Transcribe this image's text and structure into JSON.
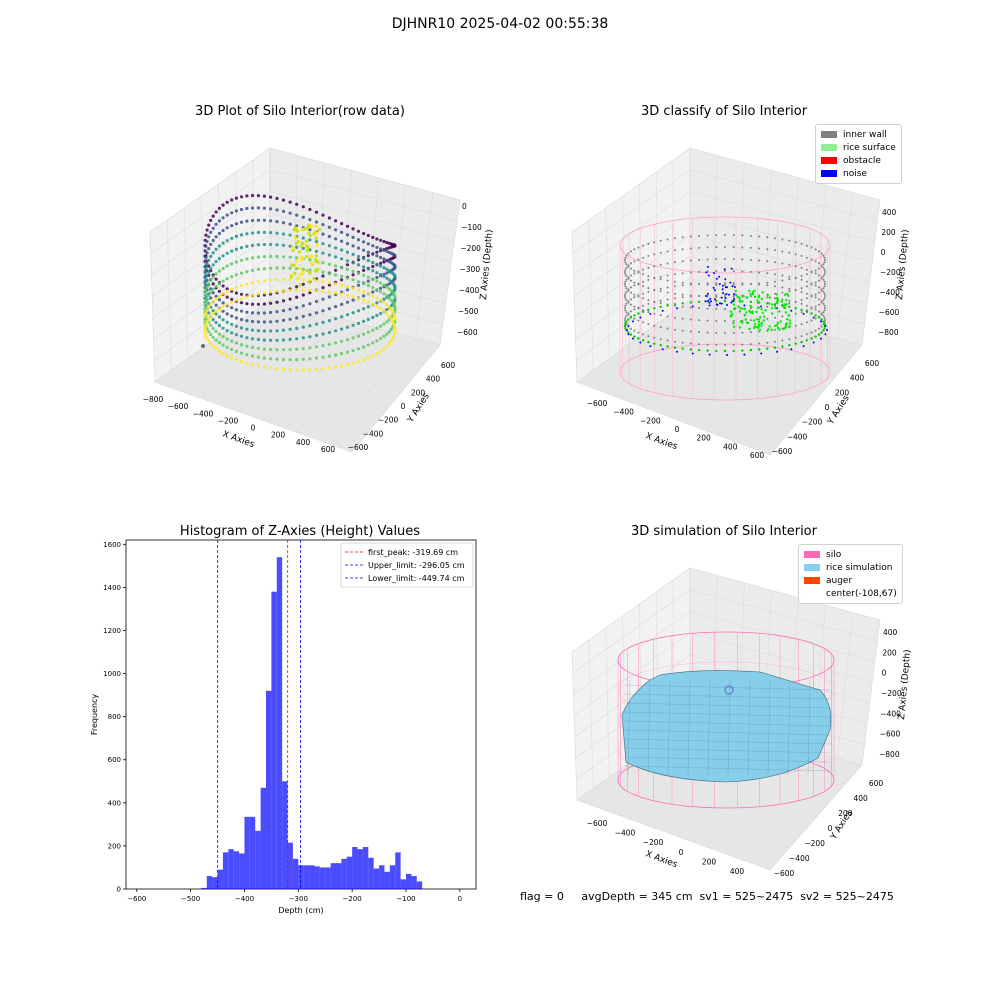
{
  "suptitle": "DJHNR10 2025-04-02 00:55:38",
  "footer": "flag = 0     avgDepth = 345 cm  sv1 = 525~2475  sv2 = 525~2475",
  "panels": {
    "raw": {
      "title": "3D Plot of Silo Interior(row data)",
      "xlabel": "X Axies",
      "ylabel": "Y Axies",
      "zlabel": "Z Axies (Depth)",
      "xticks": [
        "−800",
        "−600",
        "−400",
        "−200",
        "0",
        "200",
        "400",
        "600"
      ],
      "yticks": [
        "600",
        "400",
        "200",
        "0",
        "−200",
        "−400",
        "−600"
      ],
      "zticks": [
        "0",
        "−100",
        "−200",
        "−300",
        "−400",
        "−500",
        "−600"
      ]
    },
    "classify": {
      "title": "3D classify of Silo Interior",
      "xlabel": "X Axies",
      "ylabel": "Y Axies",
      "zlabel": "Z Axies (Depth)",
      "xticks": [
        "−600",
        "−400",
        "−200",
        "0",
        "200",
        "400",
        "600"
      ],
      "yticks": [
        "600",
        "400",
        "200",
        "0",
        "−200",
        "−400",
        "−600"
      ],
      "zticks": [
        "400",
        "200",
        "0",
        "−200",
        "−400",
        "−600",
        "−800"
      ],
      "legend": [
        {
          "label": "inner wall",
          "color": "#808080"
        },
        {
          "label": "rice surface",
          "color": "#90ee90"
        },
        {
          "label": "obstacle",
          "color": "#ff0000"
        },
        {
          "label": "noise",
          "color": "#0000ff"
        }
      ]
    },
    "simulation": {
      "title": "3D simulation of Silo Interior",
      "xlabel": "X Axies",
      "ylabel": "Y Axies",
      "zlabel": "Z Axies (Depth)",
      "xticks": [
        "−600",
        "−400",
        "−200",
        "0",
        "200",
        "400"
      ],
      "yticks": [
        "600",
        "400",
        "200",
        "0",
        "−200",
        "−400",
        "−600"
      ],
      "zticks": [
        "400",
        "200",
        "0",
        "−200",
        "−400",
        "−600",
        "−800"
      ],
      "legend": [
        {
          "label": "silo",
          "color": "#ff69b4"
        },
        {
          "label": "rice simulation",
          "color": "#87ceeb"
        },
        {
          "label": "auger",
          "color": "#ff4500"
        },
        {
          "label": "center(-108,67)",
          "color": ""
        }
      ]
    }
  },
  "chart_data": {
    "type": "bar",
    "title": "Histogram of Z-Axies (Height) Values",
    "xlabel": "Depth (cm)",
    "ylabel": "Frequency",
    "xlim": [
      -620,
      30
    ],
    "ylim": [
      0,
      1620
    ],
    "xticks": [
      -600,
      -500,
      -400,
      -300,
      -200,
      -100,
      0
    ],
    "yticks": [
      0,
      200,
      400,
      600,
      800,
      1000,
      1200,
      1400,
      1600
    ],
    "bin_width": 10,
    "bins": [
      {
        "x": -480,
        "v": 5
      },
      {
        "x": -470,
        "v": 60
      },
      {
        "x": -460,
        "v": 55
      },
      {
        "x": -450,
        "v": 90
      },
      {
        "x": -440,
        "v": 170
      },
      {
        "x": -430,
        "v": 185
      },
      {
        "x": -420,
        "v": 175
      },
      {
        "x": -410,
        "v": 165
      },
      {
        "x": -400,
        "v": 335
      },
      {
        "x": -390,
        "v": 335
      },
      {
        "x": -380,
        "v": 270
      },
      {
        "x": -370,
        "v": 470
      },
      {
        "x": -360,
        "v": 920
      },
      {
        "x": -350,
        "v": 1380
      },
      {
        "x": -340,
        "v": 1540
      },
      {
        "x": -330,
        "v": 500
      },
      {
        "x": -320,
        "v": 215
      },
      {
        "x": -310,
        "v": 140
      },
      {
        "x": -300,
        "v": 110
      },
      {
        "x": -290,
        "v": 110
      },
      {
        "x": -280,
        "v": 110
      },
      {
        "x": -270,
        "v": 105
      },
      {
        "x": -260,
        "v": 100
      },
      {
        "x": -250,
        "v": 100
      },
      {
        "x": -240,
        "v": 120
      },
      {
        "x": -230,
        "v": 120
      },
      {
        "x": -220,
        "v": 140
      },
      {
        "x": -210,
        "v": 150
      },
      {
        "x": -200,
        "v": 195
      },
      {
        "x": -190,
        "v": 185
      },
      {
        "x": -180,
        "v": 195
      },
      {
        "x": -170,
        "v": 145
      },
      {
        "x": -160,
        "v": 95
      },
      {
        "x": -150,
        "v": 110
      },
      {
        "x": -140,
        "v": 80
      },
      {
        "x": -130,
        "v": 110
      },
      {
        "x": -120,
        "v": 170
      },
      {
        "x": -110,
        "v": 45
      },
      {
        "x": -100,
        "v": 70
      },
      {
        "x": -90,
        "v": 60
      },
      {
        "x": -80,
        "v": 35
      }
    ],
    "lines": [
      {
        "label": "first_peak: -319.69 cm",
        "value": -319.69,
        "color": "#ff0000"
      },
      {
        "label": "Upper_limit: -296.05 cm",
        "value": -296.05,
        "color": "#0000ff"
      },
      {
        "label": "Lower_limit: -449.74 cm",
        "value": -449.74,
        "color": "#0000ff"
      }
    ],
    "bar_color": "#0000ff"
  }
}
